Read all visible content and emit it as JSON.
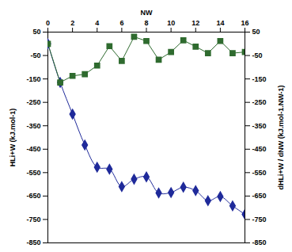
{
  "chart_data": {
    "type": "line",
    "x_label": "NW",
    "y_label": "HLi+W (kJ.mol-1)",
    "y2_label": "dHLi+W / dNW (kJ.mol-1.NW-1)",
    "x": [
      0,
      1,
      2,
      3,
      4,
      5,
      6,
      7,
      8,
      9,
      10,
      11,
      12,
      13,
      14,
      15,
      16
    ],
    "xlim": [
      0,
      16
    ],
    "xticks": [
      0,
      2,
      4,
      6,
      8,
      10,
      12,
      14,
      16
    ],
    "ylim": [
      -850,
      50
    ],
    "yticks": [
      50,
      -50,
      -150,
      -250,
      -350,
      -450,
      -550,
      -650,
      -750,
      -850
    ],
    "y2lim": [
      -850,
      50
    ],
    "y2ticks": [
      50,
      -50,
      -150,
      -250,
      -350,
      -450,
      -550,
      -650,
      -750,
      -850
    ],
    "grid": false,
    "series": [
      {
        "name": "HLi+W",
        "color": "#1f2a9a",
        "marker": "diamond",
        "line_style": "smooth",
        "values": [
          0,
          -165,
          -300,
          -432,
          -527,
          -535,
          -610,
          -578,
          -568,
          -637,
          -635,
          -612,
          -627,
          -670,
          -652,
          -692,
          -728
        ]
      },
      {
        "name": "dHLi+W / dNW",
        "color": "#2f6b2f",
        "marker": "square",
        "line_style": "solid",
        "axis": "y2",
        "values": [
          0,
          -165,
          -137,
          -130,
          -93,
          -10,
          -73,
          30,
          12,
          -68,
          -35,
          15,
          -12,
          -40,
          12,
          -40,
          -35
        ]
      }
    ]
  }
}
